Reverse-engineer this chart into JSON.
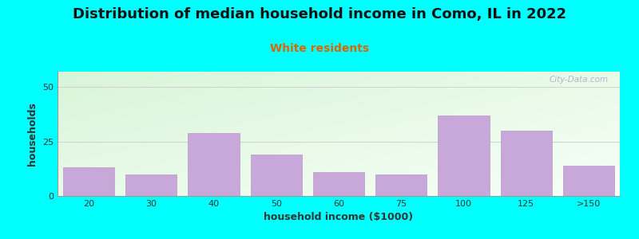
{
  "title": "Distribution of median household income in Como, IL in 2022",
  "subtitle": "White residents",
  "xlabel": "household income ($1000)",
  "ylabel": "households",
  "categories": [
    "20",
    "30",
    "40",
    "50",
    "60",
    "75",
    "100",
    "125",
    ">150"
  ],
  "values": [
    13,
    10,
    29,
    19,
    11,
    10,
    37,
    30,
    14
  ],
  "bar_color": "#C8A8D8",
  "bar_edgecolor": "#B898C8",
  "background_color": "#00FFFF",
  "grad_topleft": [
    0.85,
    0.96,
    0.85
  ],
  "grad_bottomright": [
    0.97,
    1.0,
    0.97
  ],
  "ylim": [
    0,
    57
  ],
  "yticks": [
    0,
    25,
    50
  ],
  "title_fontsize": 13,
  "subtitle_fontsize": 10,
  "subtitle_color": "#DD6600",
  "axis_label_fontsize": 9,
  "tick_fontsize": 8,
  "watermark_text": "City-Data.com",
  "watermark_color": "#AAAACC",
  "grid_color": "#CCCCCC"
}
